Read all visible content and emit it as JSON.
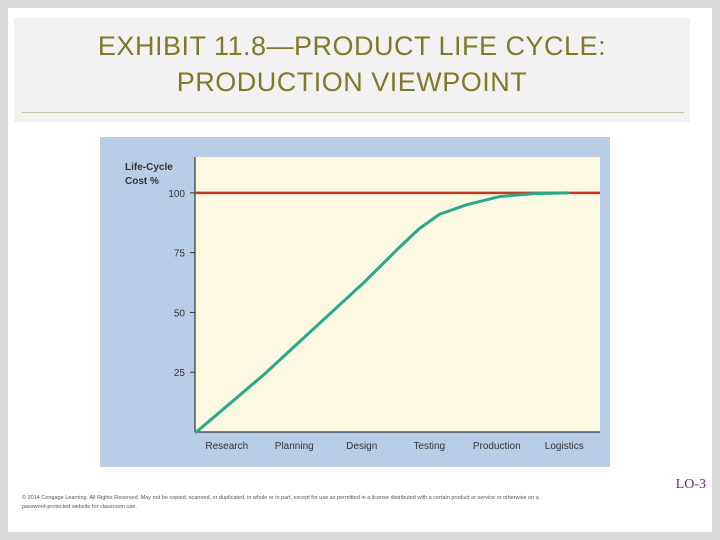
{
  "slide": {
    "title_line1": "EXHIBIT 11.8—PRODUCT LIFE CYCLE:",
    "title_line2": "PRODUCTION VIEWPOINT",
    "lo_tag": "LO-3",
    "footer_line1": "© 2014 Cengage Learning. All Rights Reserved. May not be copied, scanned, or duplicated, in whole or in part, except for use as permitted in a license distributed with a certain product or service or otherwise on a",
    "footer_line2": "password-protected website for classroom use."
  },
  "colors": {
    "frame": "#b8cde6",
    "plot_bg": "#fdf8e2",
    "curve": "#2aa98a",
    "reference": "#c0392b",
    "axis": "#333333"
  },
  "chart_data": {
    "type": "line",
    "ylabel_line1": "Life-Cycle",
    "ylabel_line2": "Cost %",
    "categories": [
      "Research",
      "Planning",
      "Design",
      "Testing",
      "Production",
      "Logistics"
    ],
    "yticks": [
      25,
      50,
      75,
      100
    ],
    "ylim": [
      0,
      115
    ],
    "reference_line": {
      "y": 100
    },
    "series": [
      {
        "x": [
          0,
          0.5,
          1,
          1.5,
          2,
          2.5,
          3,
          3.3,
          3.6,
          4,
          4.5,
          5,
          5.5
        ],
        "values": [
          0,
          12,
          24,
          37,
          50,
          63,
          77,
          85,
          91,
          95,
          98.5,
          99.7,
          100
        ]
      }
    ]
  }
}
